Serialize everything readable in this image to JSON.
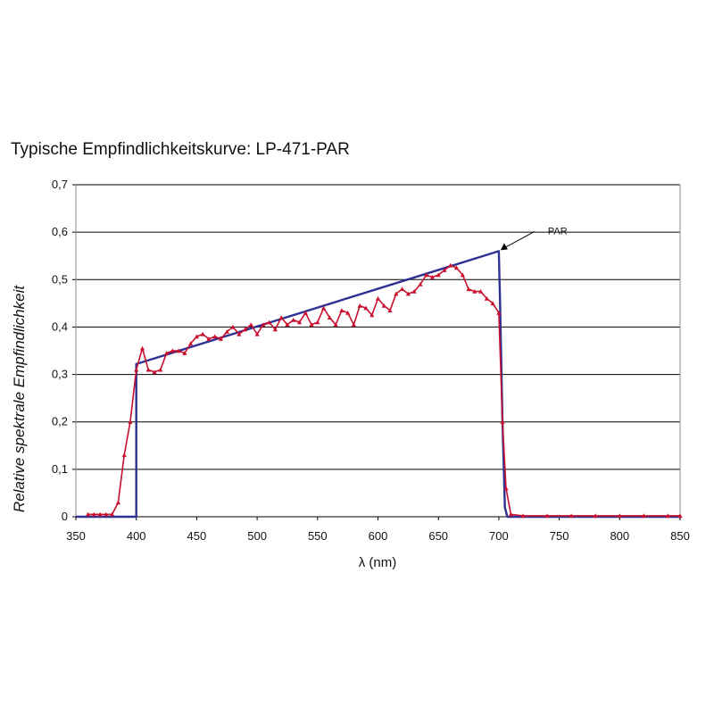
{
  "chart_data": {
    "type": "line",
    "title": "Typische Empfindlichkeitskurve: LP-471-PAR",
    "xlabel": "λ (nm)",
    "ylabel": "Relative spektrale Empfindlichkeit",
    "xlim": [
      350,
      850
    ],
    "ylim": [
      0,
      0.7
    ],
    "x_ticks": [
      "350",
      "400",
      "450",
      "500",
      "550",
      "600",
      "650",
      "700",
      "750",
      "800",
      "850"
    ],
    "y_ticks": [
      "0",
      "0,1",
      "0,2",
      "0,3",
      "0,4",
      "0,5",
      "0,6",
      "0,7"
    ],
    "grid": "horizontal",
    "annotations": [
      {
        "text": "PAR",
        "x": 700,
        "y": 0.56
      }
    ],
    "series": [
      {
        "name": "PAR",
        "color": "#2e3192",
        "marker": "none",
        "x": [
          350,
          395,
          400,
          400,
          700,
          701,
          703,
          705,
          707,
          850
        ],
        "y": [
          0,
          0,
          0,
          0.322,
          0.56,
          0.45,
          0.2,
          0.02,
          0,
          0
        ]
      },
      {
        "color": "#c8102e",
        "marker": "triangle",
        "x": [
          360,
          365,
          370,
          375,
          380,
          385,
          390,
          395,
          400,
          405,
          410,
          415,
          420,
          425,
          430,
          435,
          440,
          445,
          450,
          455,
          460,
          465,
          470,
          475,
          480,
          485,
          490,
          495,
          500,
          505,
          510,
          515,
          520,
          525,
          530,
          535,
          540,
          545,
          550,
          555,
          560,
          565,
          570,
          575,
          580,
          585,
          590,
          595,
          600,
          605,
          610,
          615,
          620,
          625,
          630,
          635,
          640,
          645,
          650,
          655,
          660,
          665,
          670,
          675,
          680,
          685,
          690,
          695,
          700,
          703,
          706,
          710,
          720,
          740,
          760,
          780,
          800,
          820,
          840,
          850
        ],
        "y": [
          0.005,
          0.005,
          0.005,
          0.005,
          0.005,
          0.03,
          0.13,
          0.2,
          0.31,
          0.355,
          0.31,
          0.305,
          0.31,
          0.345,
          0.35,
          0.35,
          0.345,
          0.365,
          0.38,
          0.385,
          0.375,
          0.38,
          0.375,
          0.39,
          0.4,
          0.385,
          0.395,
          0.405,
          0.385,
          0.405,
          0.41,
          0.395,
          0.42,
          0.405,
          0.415,
          0.41,
          0.43,
          0.405,
          0.41,
          0.44,
          0.42,
          0.405,
          0.435,
          0.43,
          0.405,
          0.445,
          0.44,
          0.425,
          0.46,
          0.445,
          0.435,
          0.47,
          0.48,
          0.47,
          0.475,
          0.49,
          0.51,
          0.505,
          0.51,
          0.52,
          0.53,
          0.525,
          0.51,
          0.48,
          0.475,
          0.475,
          0.46,
          0.45,
          0.43,
          0.2,
          0.06,
          0.005,
          0.002,
          0.002,
          0.002,
          0.002,
          0.002,
          0.002,
          0.002,
          0.002
        ]
      }
    ]
  }
}
